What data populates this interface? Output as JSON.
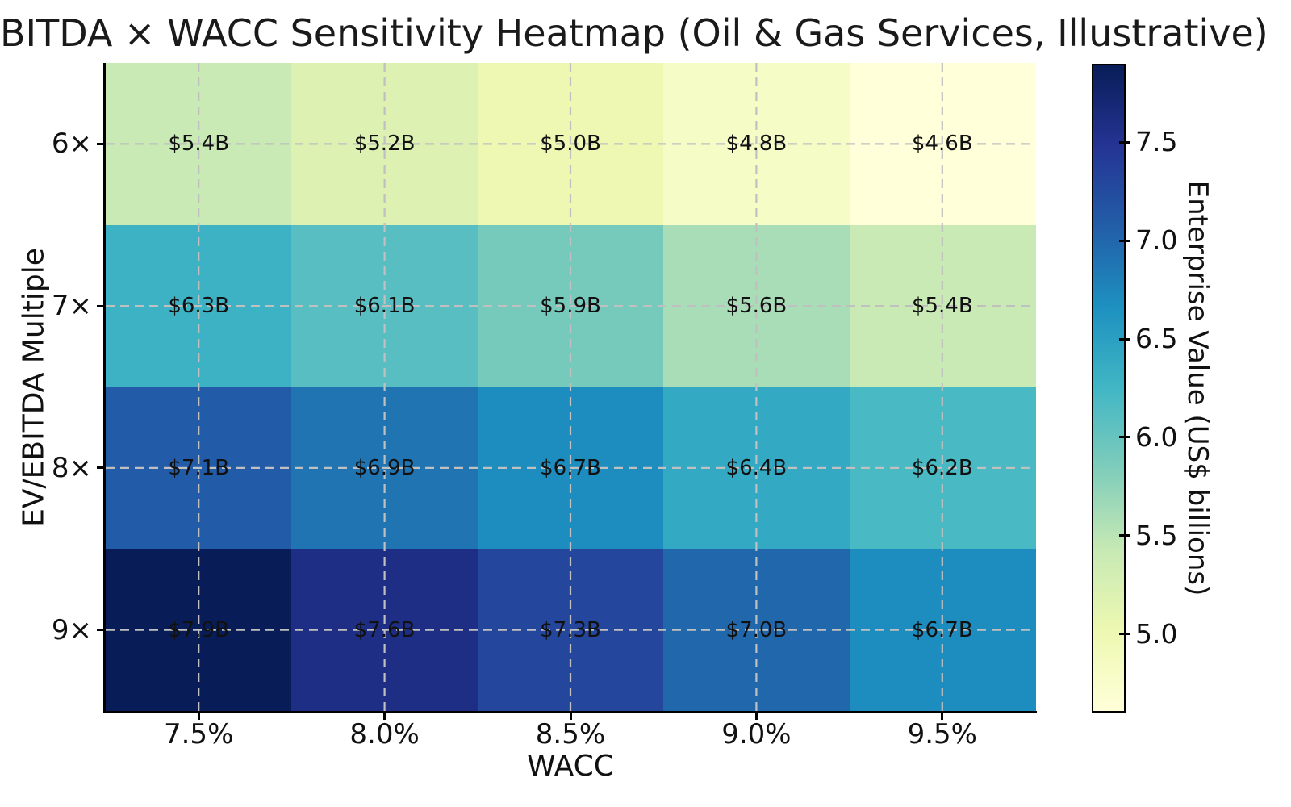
{
  "title": "BITDA × WACC Sensitivity Heatmap (Oil & Gas Services, Illustrative)",
  "chart_data": {
    "type": "heatmap",
    "title": "BITDA × WACC Sensitivity Heatmap (Oil & Gas Services, Illustrative)",
    "xlabel": "WACC",
    "ylabel": "EV/EBITDA Multiple",
    "x_tick_labels": [
      "7.5%",
      "8.0%",
      "8.5%",
      "9.0%",
      "9.5%"
    ],
    "y_tick_labels": [
      "6×",
      "7×",
      "8×",
      "9×"
    ],
    "values_billions": [
      [
        5.4,
        5.2,
        5.0,
        4.8,
        4.6
      ],
      [
        6.3,
        6.1,
        5.9,
        5.6,
        5.4
      ],
      [
        7.1,
        6.9,
        6.7,
        6.4,
        6.2
      ],
      [
        7.9,
        7.6,
        7.3,
        7.0,
        6.7
      ]
    ],
    "cell_labels": [
      [
        "$5.4B",
        "$5.2B",
        "$5.0B",
        "$4.8B",
        "$4.6B"
      ],
      [
        "$6.3B",
        "$6.1B",
        "$5.9B",
        "$5.6B",
        "$5.4B"
      ],
      [
        "$7.1B",
        "$6.9B",
        "$6.7B",
        "$6.4B",
        "$6.2B"
      ],
      [
        "$7.9B",
        "$7.6B",
        "$7.3B",
        "$7.0B",
        "$6.7B"
      ]
    ],
    "colorbar": {
      "label": "Enterprise Value (US$ billions)",
      "tick_labels": [
        "7.5",
        "7.0",
        "6.5",
        "6.0",
        "5.5",
        "5.0"
      ],
      "tick_values": [
        7.5,
        7.0,
        6.5,
        6.0,
        5.5,
        5.0
      ],
      "vmin": 4.6,
      "vmax": 7.9,
      "colormap": "YlGnBu",
      "colormap_stops": [
        "#ffffd9",
        "#edf8b1",
        "#c7e9b4",
        "#7fcdbb",
        "#41b6c4",
        "#1d91c0",
        "#225ea8",
        "#253494",
        "#081d58"
      ]
    },
    "grid": true,
    "grid_color": "#c0c0c0",
    "annotation_color": "#111111",
    "xlim_note": "grid lines drawn at tick centers, dashed",
    "legend_position": "right-colorbar"
  }
}
